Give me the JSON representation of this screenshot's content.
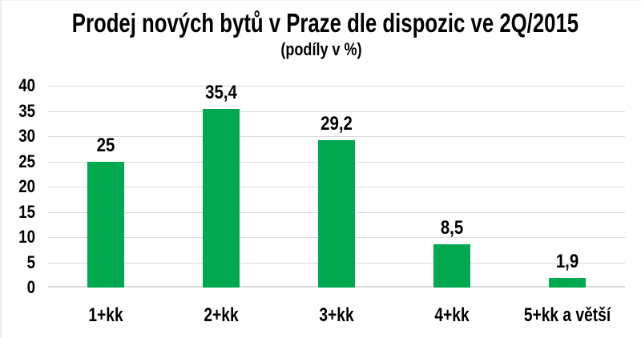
{
  "chart_data": {
    "type": "bar",
    "title": "Prodej nových bytů v Praze dle dispozic ve 2Q/2015",
    "subtitle": "(podíly v %)",
    "categories": [
      "1+kk",
      "2+kk",
      "3+kk",
      "4+kk",
      "5+kk a větší"
    ],
    "values": [
      25,
      35.4,
      29.2,
      8.5,
      1.9
    ],
    "value_labels": [
      "25",
      "35,4",
      "29,2",
      "8,5",
      "1,9"
    ],
    "yticks": [
      0,
      5,
      10,
      15,
      20,
      25,
      30,
      35,
      40
    ],
    "ylim": [
      0,
      40
    ],
    "xlabel": "",
    "ylabel": "",
    "grid": "horizontal",
    "legend": "none",
    "bar_color": "#00A850",
    "gridline_color": "#D9D9D9",
    "text_color": "#000000",
    "background_color": "#FFFFFF"
  }
}
